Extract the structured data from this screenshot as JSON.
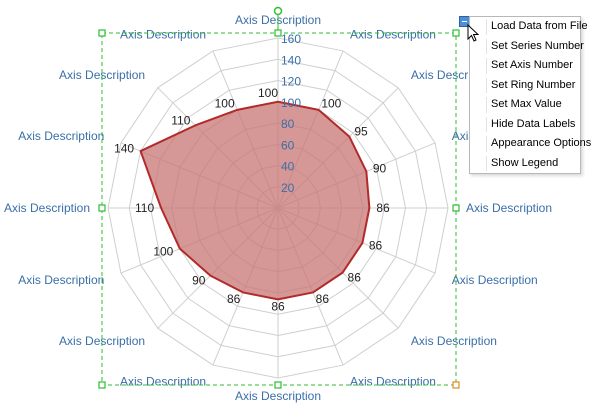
{
  "chart_data": {
    "type": "radar",
    "axes": [
      "Axis Description",
      "Axis Description",
      "Axis Description",
      "Axis Description",
      "Axis Description",
      "Axis Description",
      "Axis Description",
      "Axis Description",
      "Axis Description",
      "Axis Description",
      "Axis Description",
      "Axis Description",
      "Axis Description",
      "Axis Description",
      "Axis Description",
      "Axis Description"
    ],
    "values": [
      100,
      100,
      95,
      90,
      86,
      86,
      86,
      86,
      86,
      86,
      90,
      100,
      110,
      140,
      110,
      100
    ],
    "data_labels": [
      "100",
      "100",
      "95",
      "90",
      "86",
      "86",
      "86",
      "86",
      "86",
      "86",
      "90",
      "100",
      "110",
      "140",
      "110",
      "100"
    ],
    "rmax": 160,
    "ticks": [
      "20",
      "40",
      "60",
      "80",
      "100",
      "120",
      "140",
      "160"
    ],
    "series_color": "#b22a2a",
    "fill_color": "#c87474",
    "grid": true
  },
  "menu": {
    "items": [
      "Load Data from File",
      "Set Series Number",
      "Set Axis Number",
      "Set Ring Number",
      "Set Max Value",
      "Hide Data Labels",
      "Appearance Options",
      "Show Legend"
    ]
  },
  "selection_color": "#2fbf2f",
  "icons": {
    "menu_toggle": "menu-button-icon",
    "cursor": "pointer-cursor-icon"
  }
}
